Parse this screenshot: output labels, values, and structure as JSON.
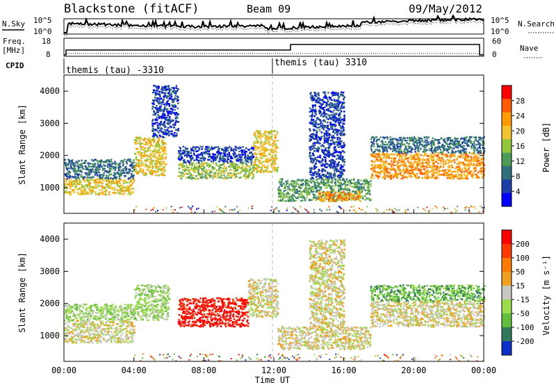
{
  "header": {
    "station": "Blackstone (fitACF)",
    "beam": "Beam 09",
    "date": "09/May/2012"
  },
  "noise_panel": {
    "left_label": "N.Sky",
    "left_ticks": [
      "10^5",
      "10^0"
    ],
    "right_label": "N.Search",
    "right_ticks": [
      "10^5",
      "10^0"
    ]
  },
  "freq_panel": {
    "left_label_1": "Freq.",
    "left_label_2": "[MHz]",
    "left_ticks": [
      "18",
      "8"
    ],
    "right_label": "Nave",
    "right_ticks": [
      "60",
      "0"
    ]
  },
  "cpid": {
    "label": "CPID",
    "entries": [
      "themis (tau) -3310",
      "themis (tau) 3310"
    ]
  },
  "colors": {
    "power_scale": [
      "#0000ff",
      "#1e3ea8",
      "#2f6f7e",
      "#4b9a55",
      "#90c83a",
      "#f4c430",
      "#ff9a00",
      "#ff5a00",
      "#ff0000"
    ],
    "velocity_scale": [
      "#0b2fc8",
      "#2e7a5a",
      "#5fbf3a",
      "#9cdc4a",
      "#c8c8c0",
      "#f0a020",
      "#ff7a00",
      "#ff3a00",
      "#ff0000"
    ]
  },
  "chart_data": [
    {
      "type": "heatmap",
      "name": "power",
      "ylabel": "Slant Range [km]",
      "yticks": [
        "1000",
        "2000",
        "3000",
        "4000"
      ],
      "ylim": [
        200,
        4500
      ],
      "colorbar_label": "Power [dB]",
      "colorbar_ticks": [
        "28",
        "24",
        "20",
        "16",
        "12",
        "8",
        "4"
      ],
      "bands": [
        {
          "t0": 0.0,
          "t1": 4.0,
          "r0": 800,
          "r1": 1300,
          "level": 5
        },
        {
          "t0": 0.0,
          "t1": 4.0,
          "r0": 1300,
          "r1": 1900,
          "level": 2
        },
        {
          "t0": 4.0,
          "t1": 5.8,
          "r0": 1400,
          "r1": 2600,
          "level": 5
        },
        {
          "t0": 5.0,
          "t1": 6.5,
          "r0": 2600,
          "r1": 4200,
          "level": 1
        },
        {
          "t0": 6.5,
          "t1": 10.8,
          "r0": 1300,
          "r1": 1800,
          "level": 4
        },
        {
          "t0": 6.5,
          "t1": 10.8,
          "r0": 1800,
          "r1": 2300,
          "level": 1
        },
        {
          "t0": 10.8,
          "t1": 12.2,
          "r0": 1500,
          "r1": 2800,
          "level": 5
        },
        {
          "t0": 12.2,
          "t1": 17.5,
          "r0": 600,
          "r1": 1300,
          "level": 3
        },
        {
          "t0": 14.5,
          "t1": 17.0,
          "r0": 600,
          "r1": 900,
          "level": 6
        },
        {
          "t0": 14.0,
          "t1": 16.0,
          "r0": 1300,
          "r1": 4000,
          "level": 1
        },
        {
          "t0": 17.5,
          "t1": 24.0,
          "r0": 1300,
          "r1": 2100,
          "level": 6
        },
        {
          "t0": 17.5,
          "t1": 24.0,
          "r0": 2100,
          "r1": 2600,
          "level": 2
        }
      ]
    },
    {
      "type": "heatmap",
      "name": "velocity",
      "ylabel": "Slant Range [km]",
      "xlabel": "Time UT",
      "xticks": [
        "00:00",
        "04:00",
        "08:00",
        "12:00",
        "16:00",
        "20:00",
        "00:00"
      ],
      "xlim": [
        0,
        24
      ],
      "yticks": [
        "1000",
        "2000",
        "3000",
        "4000"
      ],
      "ylim": [
        200,
        4500
      ],
      "colorbar_label": "Velocity [m s⁻¹]",
      "colorbar_ticks": [
        "200",
        "100",
        "50",
        "15",
        "-15",
        "-50",
        "-100",
        "-200"
      ],
      "bands": [
        {
          "t0": 0.0,
          "t1": 4.0,
          "r0": 800,
          "r1": 1500,
          "level": 4
        },
        {
          "t0": 0.0,
          "t1": 4.0,
          "r0": 1500,
          "r1": 2000,
          "level": 3
        },
        {
          "t0": 4.0,
          "t1": 6.0,
          "r0": 1500,
          "r1": 2600,
          "level": 3
        },
        {
          "t0": 6.5,
          "t1": 10.5,
          "r0": 1300,
          "r1": 2200,
          "level": 8
        },
        {
          "t0": 10.5,
          "t1": 12.2,
          "r0": 1600,
          "r1": 2800,
          "level": 4
        },
        {
          "t0": 12.2,
          "t1": 17.5,
          "r0": 600,
          "r1": 1300,
          "level": 4
        },
        {
          "t0": 14.0,
          "t1": 16.0,
          "r0": 1300,
          "r1": 4000,
          "level": 4
        },
        {
          "t0": 17.5,
          "t1": 24.0,
          "r0": 1300,
          "r1": 2100,
          "level": 4
        },
        {
          "t0": 17.5,
          "t1": 24.0,
          "r0": 2100,
          "r1": 2600,
          "level": 2
        }
      ]
    }
  ]
}
